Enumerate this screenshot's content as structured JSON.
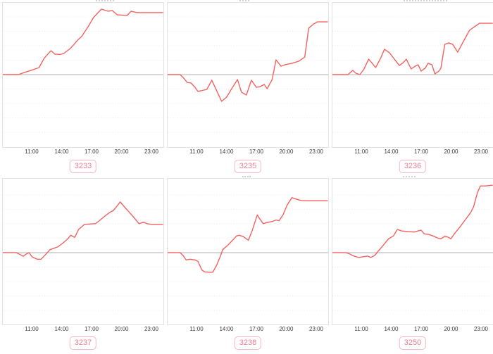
{
  "style": {
    "background": "#ffffff",
    "line_color": "#f4605d",
    "baseline_color": "#b0b0b0",
    "grid_color": "#ececec",
    "panel_border_color": "#e2e2e2",
    "axis_label_color": "#3a3a3a",
    "badge_border_color": "#f3b6c4",
    "badge_text_color": "#ec7f93"
  },
  "axis": {
    "tick_labels": [
      "11:00",
      "14:00",
      "17:00",
      "20:00",
      "23:00"
    ],
    "tick_hours": [
      11,
      14,
      17,
      20,
      23
    ],
    "x_unit": "time of day (HH:MM)",
    "y_unit": "relative value vs baseline (baseline = 0, plot top = 1)",
    "grid": "horizontal dotted lines, solid gray baseline at 0"
  },
  "chart_data": [
    {
      "type": "line",
      "badge": "3233",
      "xlim": [
        8.1,
        24.3
      ],
      "ylim": [
        -1.02,
        1.02
      ],
      "points": [
        [
          8.0,
          0
        ],
        [
          9.6,
          0
        ],
        [
          10.2,
          0.03
        ],
        [
          10.9,
          0.06
        ],
        [
          11.5,
          0.09
        ],
        [
          11.7,
          0.1
        ],
        [
          12.2,
          0.23
        ],
        [
          12.9,
          0.34
        ],
        [
          13.3,
          0.29
        ],
        [
          13.8,
          0.285
        ],
        [
          14.2,
          0.3
        ],
        [
          14.9,
          0.375
        ],
        [
          15.6,
          0.49
        ],
        [
          16.0,
          0.54
        ],
        [
          16.7,
          0.69
        ],
        [
          17.2,
          0.81
        ],
        [
          18.0,
          0.93
        ],
        [
          18.7,
          0.9
        ],
        [
          19.1,
          0.91
        ],
        [
          19.6,
          0.85
        ],
        [
          20.6,
          0.84
        ],
        [
          21.0,
          0.9
        ],
        [
          21.6,
          0.88
        ],
        [
          24.2,
          0.88
        ]
      ]
    },
    {
      "type": "line",
      "badge": "3235",
      "xlim": [
        8.1,
        24.3
      ],
      "ylim": [
        -1.02,
        1.02
      ],
      "points": [
        [
          8.0,
          0
        ],
        [
          9.3,
          0
        ],
        [
          9.6,
          -0.04
        ],
        [
          10.0,
          -0.11
        ],
        [
          10.4,
          -0.12
        ],
        [
          10.8,
          -0.18
        ],
        [
          11.1,
          -0.24
        ],
        [
          11.7,
          -0.22
        ],
        [
          12.0,
          -0.21
        ],
        [
          12.5,
          -0.08
        ],
        [
          13.0,
          -0.23
        ],
        [
          13.5,
          -0.38
        ],
        [
          14.0,
          -0.32
        ],
        [
          14.6,
          -0.18
        ],
        [
          15.1,
          -0.07
        ],
        [
          15.5,
          -0.25
        ],
        [
          16.0,
          -0.29
        ],
        [
          16.5,
          -0.08
        ],
        [
          17.0,
          -0.18
        ],
        [
          17.4,
          -0.17
        ],
        [
          17.8,
          -0.14
        ],
        [
          18.1,
          -0.2
        ],
        [
          18.6,
          -0.07
        ],
        [
          19.0,
          0.21
        ],
        [
          19.5,
          0.12
        ],
        [
          19.9,
          0.14
        ],
        [
          20.6,
          0.16
        ],
        [
          21.3,
          0.19
        ],
        [
          21.9,
          0.25
        ],
        [
          22.3,
          0.66
        ],
        [
          22.8,
          0.72
        ],
        [
          23.2,
          0.75
        ],
        [
          24.2,
          0.75
        ]
      ]
    },
    {
      "type": "line",
      "badge": "3236",
      "xlim": [
        8.1,
        24.3
      ],
      "ylim": [
        -1.02,
        1.02
      ],
      "points": [
        [
          8.0,
          0
        ],
        [
          9.6,
          0
        ],
        [
          10.1,
          0.06
        ],
        [
          10.4,
          0.02
        ],
        [
          10.8,
          0.0
        ],
        [
          11.2,
          0.07
        ],
        [
          11.7,
          0.22
        ],
        [
          12.0,
          0.17
        ],
        [
          12.4,
          0.1
        ],
        [
          12.9,
          0.23
        ],
        [
          13.3,
          0.36
        ],
        [
          13.8,
          0.31
        ],
        [
          14.3,
          0.22
        ],
        [
          14.8,
          0.13
        ],
        [
          15.2,
          0.17
        ],
        [
          15.5,
          0.22
        ],
        [
          16.0,
          0.08
        ],
        [
          16.4,
          0.12
        ],
        [
          16.7,
          0.14
        ],
        [
          17.0,
          0.05
        ],
        [
          17.4,
          0.09
        ],
        [
          17.7,
          0.16
        ],
        [
          18.1,
          0.14
        ],
        [
          18.4,
          0.01
        ],
        [
          18.8,
          0.05
        ],
        [
          19.0,
          0.09
        ],
        [
          19.4,
          0.43
        ],
        [
          19.8,
          0.45
        ],
        [
          20.2,
          0.43
        ],
        [
          20.7,
          0.32
        ],
        [
          21.2,
          0.45
        ],
        [
          21.9,
          0.63
        ],
        [
          22.3,
          0.67
        ],
        [
          22.9,
          0.73
        ],
        [
          24.2,
          0.73
        ]
      ]
    },
    {
      "type": "line",
      "badge": "3237",
      "xlim": [
        8.1,
        24.3
      ],
      "ylim": [
        -1.02,
        1.02
      ],
      "points": [
        [
          8.0,
          0
        ],
        [
          9.4,
          0
        ],
        [
          9.7,
          -0.02
        ],
        [
          10.1,
          -0.05
        ],
        [
          10.4,
          -0.02
        ],
        [
          10.7,
          0
        ],
        [
          11.0,
          -0.06
        ],
        [
          11.5,
          -0.09
        ],
        [
          11.9,
          -0.09
        ],
        [
          12.4,
          -0.02
        ],
        [
          12.8,
          0.04
        ],
        [
          13.0,
          0.05
        ],
        [
          13.6,
          0.08
        ],
        [
          14.1,
          0.13
        ],
        [
          14.6,
          0.19
        ],
        [
          14.9,
          0.24
        ],
        [
          15.3,
          0.21
        ],
        [
          15.7,
          0.32
        ],
        [
          16.3,
          0.39
        ],
        [
          16.8,
          0.395
        ],
        [
          17.4,
          0.4
        ],
        [
          17.8,
          0.44
        ],
        [
          18.4,
          0.51
        ],
        [
          18.9,
          0.56
        ],
        [
          19.2,
          0.58
        ],
        [
          19.6,
          0.645
        ],
        [
          19.9,
          0.7
        ],
        [
          20.4,
          0.62
        ],
        [
          21.0,
          0.53
        ],
        [
          21.5,
          0.45
        ],
        [
          21.8,
          0.4
        ],
        [
          22.3,
          0.42
        ],
        [
          22.6,
          0.4
        ],
        [
          23.1,
          0.39
        ],
        [
          24.2,
          0.39
        ]
      ]
    },
    {
      "type": "line",
      "badge": "3238",
      "xlim": [
        8.1,
        24.3
      ],
      "ylim": [
        -1.02,
        1.02
      ],
      "points": [
        [
          8.0,
          0
        ],
        [
          9.3,
          0
        ],
        [
          9.6,
          -0.04
        ],
        [
          9.9,
          -0.1
        ],
        [
          10.3,
          -0.09
        ],
        [
          10.8,
          -0.1
        ],
        [
          11.1,
          -0.12
        ],
        [
          11.5,
          -0.24
        ],
        [
          11.8,
          -0.265
        ],
        [
          12.3,
          -0.27
        ],
        [
          12.6,
          -0.27
        ],
        [
          13.0,
          -0.17
        ],
        [
          13.4,
          -0.04
        ],
        [
          13.6,
          0.04
        ],
        [
          14.1,
          0.1
        ],
        [
          14.6,
          0.17
        ],
        [
          15.0,
          0.23
        ],
        [
          15.3,
          0.24
        ],
        [
          15.7,
          0.22
        ],
        [
          16.2,
          0.17
        ],
        [
          16.6,
          0.31
        ],
        [
          17.1,
          0.52
        ],
        [
          17.3,
          0.475
        ],
        [
          17.7,
          0.4
        ],
        [
          18.1,
          0.415
        ],
        [
          18.6,
          0.43
        ],
        [
          19.0,
          0.45
        ],
        [
          19.3,
          0.44
        ],
        [
          19.7,
          0.52
        ],
        [
          20.1,
          0.65
        ],
        [
          20.6,
          0.76
        ],
        [
          21.0,
          0.74
        ],
        [
          21.5,
          0.72
        ],
        [
          22.0,
          0.715
        ],
        [
          24.2,
          0.715
        ]
      ]
    },
    {
      "type": "line",
      "badge": "3250",
      "xlim": [
        8.1,
        24.3
      ],
      "ylim": [
        -1.02,
        1.02
      ],
      "points": [
        [
          8.0,
          0
        ],
        [
          9.4,
          0
        ],
        [
          9.7,
          -0.013
        ],
        [
          10.2,
          -0.047
        ],
        [
          10.7,
          -0.066
        ],
        [
          11.2,
          -0.056
        ],
        [
          11.6,
          -0.047
        ],
        [
          11.9,
          -0.066
        ],
        [
          12.3,
          -0.04
        ],
        [
          12.6,
          0.01
        ],
        [
          13.1,
          0.09
        ],
        [
          13.7,
          0.19
        ],
        [
          14.2,
          0.23
        ],
        [
          14.6,
          0.32
        ],
        [
          15.0,
          0.3
        ],
        [
          15.7,
          0.29
        ],
        [
          16.3,
          0.285
        ],
        [
          16.7,
          0.3
        ],
        [
          17.0,
          0.31
        ],
        [
          17.3,
          0.26
        ],
        [
          17.8,
          0.25
        ],
        [
          18.2,
          0.23
        ],
        [
          18.7,
          0.2
        ],
        [
          19.0,
          0.19
        ],
        [
          19.4,
          0.226
        ],
        [
          19.8,
          0.21
        ],
        [
          20.0,
          0.19
        ],
        [
          20.4,
          0.266
        ],
        [
          20.9,
          0.35
        ],
        [
          21.4,
          0.44
        ],
        [
          22.0,
          0.55
        ],
        [
          22.3,
          0.63
        ],
        [
          22.7,
          0.83
        ],
        [
          23.0,
          0.92
        ],
        [
          23.5,
          0.92
        ],
        [
          24.2,
          0.93
        ]
      ]
    }
  ]
}
